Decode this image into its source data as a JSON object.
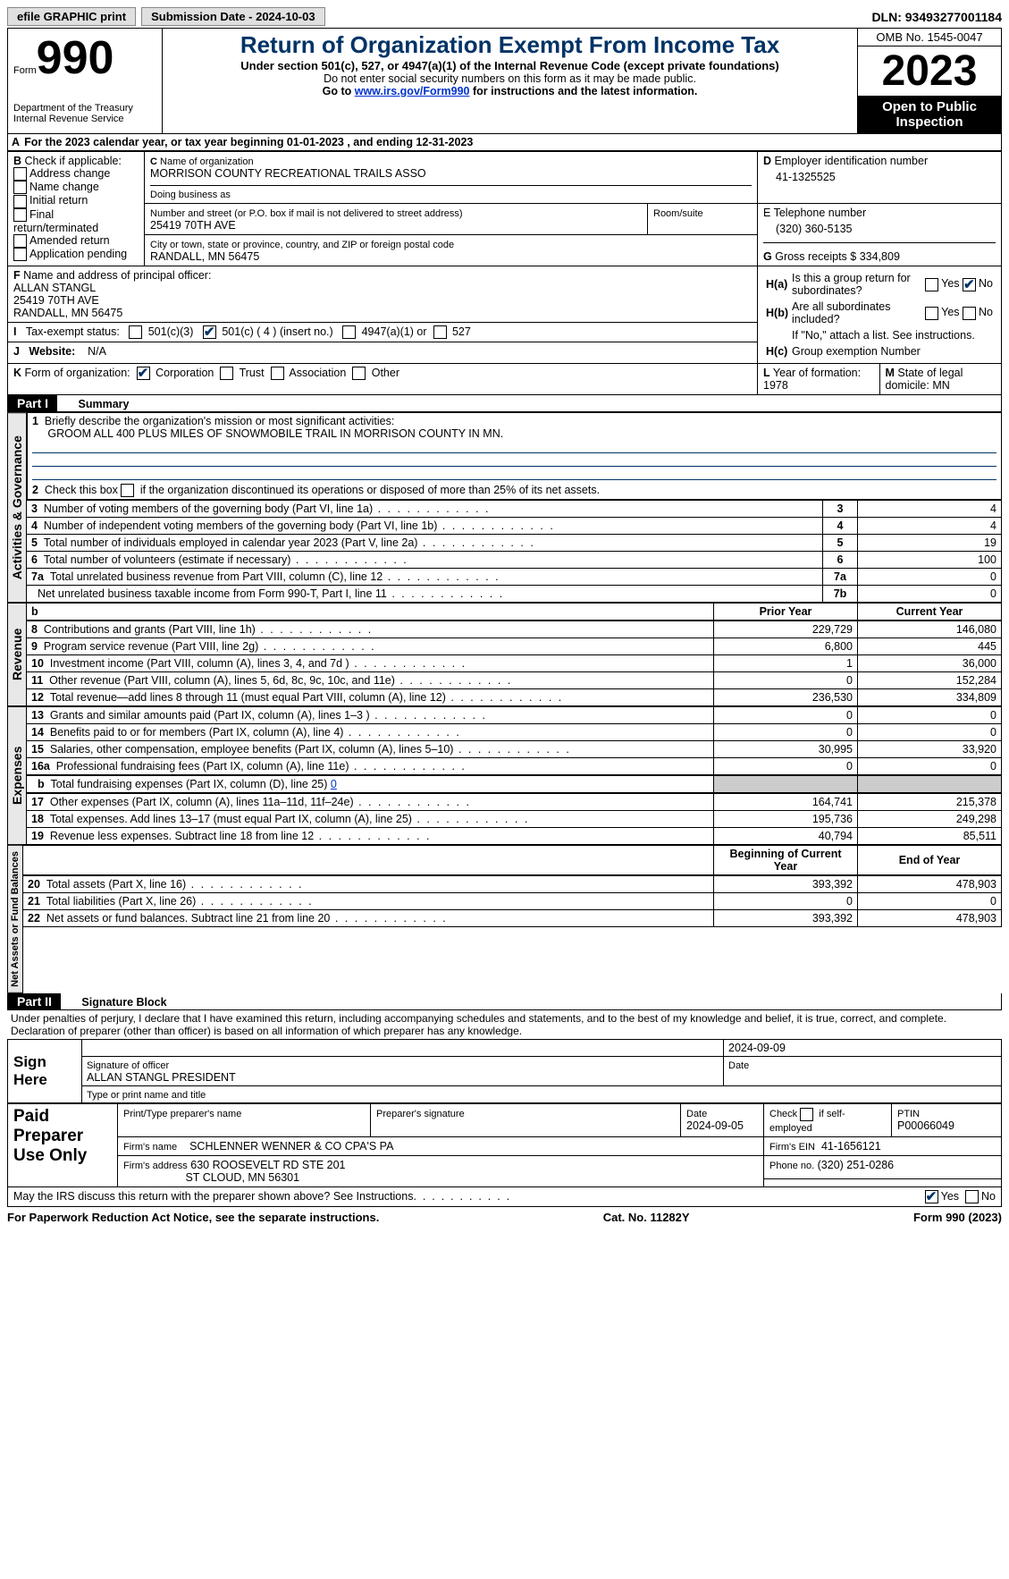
{
  "top": {
    "efile": "efile GRAPHIC print",
    "submission": "Submission Date - 2024-10-03",
    "dln_label": "DLN:",
    "dln": "93493277001184"
  },
  "header": {
    "form_prefix": "Form",
    "form_no": "990",
    "dept": "Department of the Treasury\nInternal Revenue Service",
    "title": "Return of Organization Exempt From Income Tax",
    "sub1": "Under section 501(c), 527, or 4947(a)(1) of the Internal Revenue Code (except private foundations)",
    "sub2": "Do not enter social security numbers on this form as it may be made public.",
    "sub3_pre": "Go to ",
    "sub3_link": "www.irs.gov/Form990",
    "sub3_post": " for instructions and the latest information.",
    "omb": "OMB No. 1545-0047",
    "year": "2023",
    "open": "Open to Public Inspection"
  },
  "A": {
    "text": "For the 2023 calendar year, or tax year beginning 01-01-2023   , and ending 12-31-2023"
  },
  "B": {
    "label": "Check if applicable:",
    "items": [
      "Address change",
      "Name change",
      "Initial return",
      "Final return/terminated",
      "Amended return",
      "Application pending"
    ]
  },
  "C": {
    "name_label": "Name of organization",
    "name": "MORRISON COUNTY RECREATIONAL TRAILS ASSO",
    "dba_label": "Doing business as",
    "street_label": "Number and street (or P.O. box if mail is not delivered to street address)",
    "room_label": "Room/suite",
    "street": "25419 70TH AVE",
    "city_label": "City or town, state or province, country, and ZIP or foreign postal code",
    "city": "RANDALL, MN  56475"
  },
  "D": {
    "label": "Employer identification number",
    "val": "41-1325525"
  },
  "E": {
    "label": "E Telephone number",
    "val": "(320) 360-5135"
  },
  "G": {
    "label": "Gross receipts $",
    "val": "334,809"
  },
  "F": {
    "label": "Name and address of principal officer:",
    "name": "ALLAN STANGL",
    "street": "25419 70TH AVE",
    "city": "RANDALL, MN  56475"
  },
  "H": {
    "a": "Is this a group return for subordinates?",
    "b": "Are all subordinates included?",
    "b_note": "If \"No,\" attach a list. See instructions.",
    "c": "Group exemption Number"
  },
  "I": {
    "label": "Tax-exempt status:",
    "opt1": "501(c)(3)",
    "opt2": "501(c) ( 4 ) (insert no.)",
    "opt3": "4947(a)(1) or",
    "opt4": "527"
  },
  "J": {
    "label": "Website:",
    "val": "N/A"
  },
  "K": {
    "label": "Form of organization:",
    "opts": [
      "Corporation",
      "Trust",
      "Association",
      "Other"
    ]
  },
  "L": {
    "label": "Year of formation:",
    "val": "1978"
  },
  "M": {
    "label": "State of legal domicile:",
    "val": "MN"
  },
  "part1": {
    "title": "Part I",
    "subtitle": "Summary",
    "line1_label": "Briefly describe the organization's mission or most significant activities:",
    "line1_val": "GROOM ALL 400 PLUS MILES OF SNOWMOBILE TRAIL IN MORRISON COUNTY IN MN.",
    "line2": "Check this box        if the organization discontinued its operations or disposed of more than 25% of its net assets.",
    "gov_side": "Activities & Governance",
    "rev_side": "Revenue",
    "exp_side": "Expenses",
    "net_side": "Net Assets or Fund Balances",
    "rows_gov": [
      {
        "n": "3",
        "t": "Number of voting members of the governing body (Part VI, line 1a)",
        "b": "3",
        "v": "4"
      },
      {
        "n": "4",
        "t": "Number of independent voting members of the governing body (Part VI, line 1b)",
        "b": "4",
        "v": "4"
      },
      {
        "n": "5",
        "t": "Total number of individuals employed in calendar year 2023 (Part V, line 2a)",
        "b": "5",
        "v": "19"
      },
      {
        "n": "6",
        "t": "Total number of volunteers (estimate if necessary)",
        "b": "6",
        "v": "100"
      },
      {
        "n": "7a",
        "t": "Total unrelated business revenue from Part VIII, column (C), line 12",
        "b": "7a",
        "v": "0"
      },
      {
        "n": "",
        "t": "Net unrelated business taxable income from Form 990-T, Part I, line 11",
        "b": "7b",
        "v": "0"
      }
    ],
    "col_prior": "Prior Year",
    "col_current": "Current Year",
    "b_label": "b",
    "rows_rev": [
      {
        "n": "8",
        "t": "Contributions and grants (Part VIII, line 1h)",
        "p": "229,729",
        "c": "146,080"
      },
      {
        "n": "9",
        "t": "Program service revenue (Part VIII, line 2g)",
        "p": "6,800",
        "c": "445"
      },
      {
        "n": "10",
        "t": "Investment income (Part VIII, column (A), lines 3, 4, and 7d )",
        "p": "1",
        "c": "36,000"
      },
      {
        "n": "11",
        "t": "Other revenue (Part VIII, column (A), lines 5, 6d, 8c, 9c, 10c, and 11e)",
        "p": "0",
        "c": "152,284"
      },
      {
        "n": "12",
        "t": "Total revenue—add lines 8 through 11 (must equal Part VIII, column (A), line 12)",
        "p": "236,530",
        "c": "334,809"
      }
    ],
    "rows_exp": [
      {
        "n": "13",
        "t": "Grants and similar amounts paid (Part IX, column (A), lines 1–3 )",
        "p": "0",
        "c": "0"
      },
      {
        "n": "14",
        "t": "Benefits paid to or for members (Part IX, column (A), line 4)",
        "p": "0",
        "c": "0"
      },
      {
        "n": "15",
        "t": "Salaries, other compensation, employee benefits (Part IX, column (A), lines 5–10)",
        "p": "30,995",
        "c": "33,920"
      },
      {
        "n": "16a",
        "t": "Professional fundraising fees (Part IX, column (A), line 11e)",
        "p": "0",
        "c": "0"
      }
    ],
    "row_16b": {
      "n": "b",
      "t": "Total fundraising expenses (Part IX, column (D), line 25)",
      "v": "0"
    },
    "rows_exp2": [
      {
        "n": "17",
        "t": "Other expenses (Part IX, column (A), lines 11a–11d, 11f–24e)",
        "p": "164,741",
        "c": "215,378"
      },
      {
        "n": "18",
        "t": "Total expenses. Add lines 13–17 (must equal Part IX, column (A), line 25)",
        "p": "195,736",
        "c": "249,298"
      },
      {
        "n": "19",
        "t": "Revenue less expenses. Subtract line 18 from line 12",
        "p": "40,794",
        "c": "85,511"
      }
    ],
    "col_begin": "Beginning of Current Year",
    "col_end": "End of Year",
    "rows_net": [
      {
        "n": "20",
        "t": "Total assets (Part X, line 16)",
        "p": "393,392",
        "c": "478,903"
      },
      {
        "n": "21",
        "t": "Total liabilities (Part X, line 26)",
        "p": "0",
        "c": "0"
      },
      {
        "n": "22",
        "t": "Net assets or fund balances. Subtract line 21 from line 20",
        "p": "393,392",
        "c": "478,903"
      }
    ]
  },
  "part2": {
    "title": "Part II",
    "subtitle": "Signature Block",
    "decl": "Under penalties of perjury, I declare that I have examined this return, including accompanying schedules and statements, and to the best of my knowledge and belief, it is true, correct, and complete. Declaration of preparer (other than officer) is based on all information of which preparer has any knowledge.",
    "sign_here": "Sign Here",
    "sig_officer": "Signature of officer",
    "sig_date_label": "Date",
    "sig_date": "2024-09-09",
    "officer_name": "ALLAN STANGL PRESIDENT",
    "type_name": "Type or print name and title",
    "paid": "Paid Preparer Use Only",
    "prep_name_label": "Print/Type preparer's name",
    "prep_sig_label": "Preparer's signature",
    "prep_date_label": "Date",
    "prep_date": "2024-09-05",
    "self_emp": "Check        if self-employed",
    "ptin_label": "PTIN",
    "ptin": "P00066049",
    "firm_name_label": "Firm's name",
    "firm_name": "SCHLENNER WENNER & CO CPA'S PA",
    "firm_ein_label": "Firm's EIN",
    "firm_ein": "41-1656121",
    "firm_addr_label": "Firm's address",
    "firm_addr1": "630 ROOSEVELT RD STE 201",
    "firm_addr2": "ST CLOUD, MN  56301",
    "firm_phone_label": "Phone no.",
    "firm_phone": "(320) 251-0286",
    "discuss": "May the IRS discuss this return with the preparer shown above? See Instructions."
  },
  "footer": {
    "left": "For Paperwork Reduction Act Notice, see the separate instructions.",
    "mid": "Cat. No. 11282Y",
    "right": "Form 990 (2023)"
  },
  "labels": {
    "yes": "Yes",
    "no": "No",
    "A": "A",
    "B": "B",
    "C": "C",
    "D": "D",
    "F": "F",
    "G": "G",
    "Ha": "H(a)",
    "Hb": "H(b)",
    "Hc": "H(c)",
    "I": "I",
    "J": "J",
    "K": "K",
    "L": "L",
    "M": "M"
  }
}
